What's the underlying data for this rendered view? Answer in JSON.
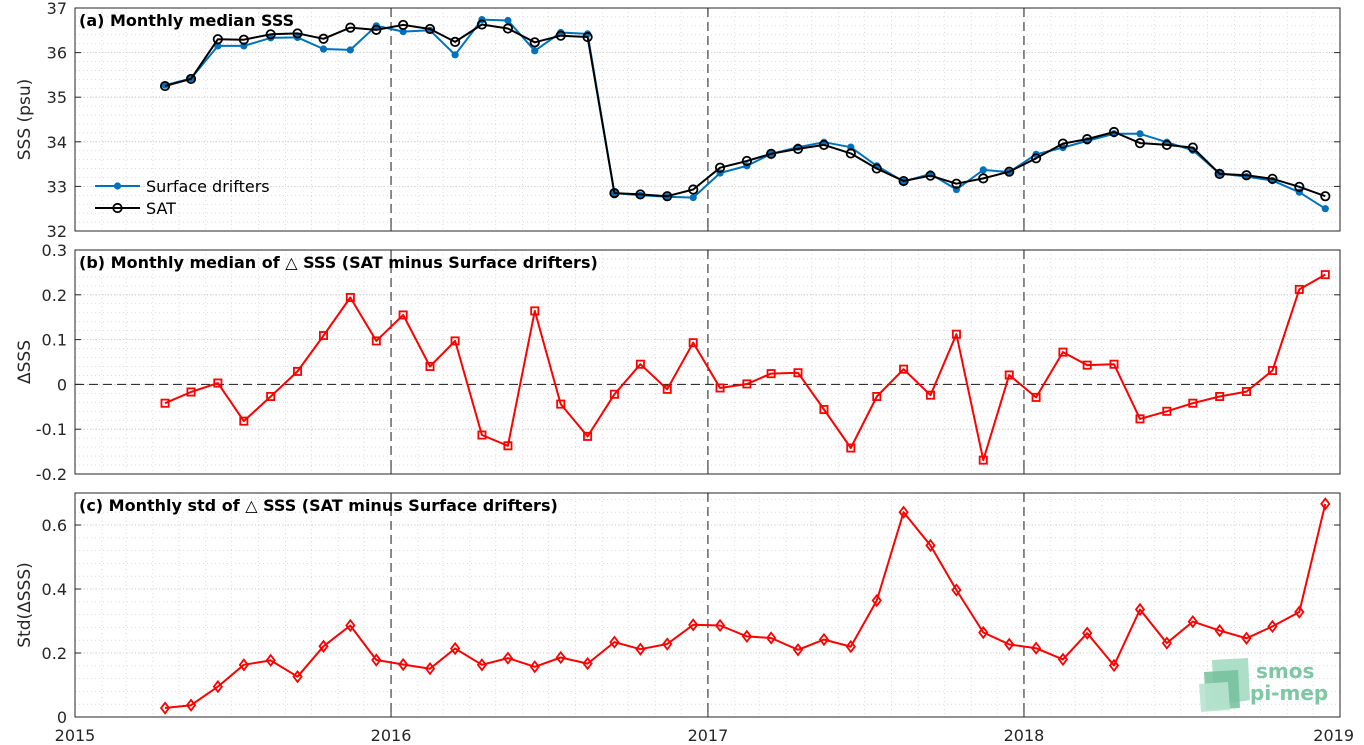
{
  "chart_data": [
    {
      "type": "line",
      "title": "(a) Monthly median SSS",
      "xlabel": "",
      "ylabel": "SSS (psu)",
      "xlim": [
        "2015-01-01",
        "2019-01-01"
      ],
      "ylim": [
        32,
        37
      ],
      "xticks": [
        "2015",
        "2016",
        "2017",
        "2018",
        "2019"
      ],
      "yticks": [
        "32",
        "33",
        "34",
        "35",
        "36",
        "37"
      ],
      "grid": true,
      "legend_location": "bottom-left",
      "x": [
        "2015-04",
        "2015-05",
        "2015-06",
        "2015-07",
        "2015-08",
        "2015-09",
        "2015-10",
        "2015-11",
        "2015-12",
        "2016-01",
        "2016-02",
        "2016-03",
        "2016-04",
        "2016-05",
        "2016-06",
        "2016-07",
        "2016-08",
        "2016-09",
        "2016-10",
        "2016-11",
        "2016-12",
        "2017-01",
        "2017-02",
        "2017-03",
        "2017-04",
        "2017-05",
        "2017-06",
        "2017-07",
        "2017-08",
        "2017-09",
        "2017-10",
        "2017-11",
        "2017-12",
        "2018-01",
        "2018-02",
        "2018-03",
        "2018-04",
        "2018-05",
        "2018-06",
        "2018-07",
        "2018-08",
        "2018-09",
        "2018-10",
        "2018-11",
        "2018-12"
      ],
      "series": [
        {
          "name": "Surface drifters",
          "color": "#0072bd",
          "marker": "dot",
          "values": [
            35.27,
            35.42,
            36.15,
            36.15,
            36.33,
            36.34,
            36.08,
            36.06,
            36.6,
            36.47,
            36.5,
            35.95,
            36.74,
            36.72,
            36.04,
            36.45,
            36.42,
            32.85,
            32.8,
            32.77,
            32.75,
            33.3,
            33.46,
            33.73,
            33.88,
            33.99,
            33.88,
            33.46,
            33.11,
            33.28,
            32.93,
            33.37,
            33.32,
            33.72,
            33.87,
            34.02,
            34.18,
            34.18,
            33.99,
            33.81,
            33.29,
            33.22,
            33.13,
            32.87,
            32.5
          ]
        },
        {
          "name": "SAT",
          "color": "#000000",
          "marker": "circle",
          "values": [
            35.25,
            35.41,
            36.3,
            36.29,
            36.41,
            36.43,
            36.31,
            36.56,
            36.51,
            36.62,
            36.53,
            36.24,
            36.63,
            36.54,
            36.23,
            36.38,
            36.35,
            32.85,
            32.82,
            32.78,
            32.93,
            33.42,
            33.57,
            33.73,
            33.84,
            33.93,
            33.74,
            33.4,
            33.12,
            33.24,
            33.06,
            33.18,
            33.33,
            33.63,
            33.96,
            34.06,
            34.22,
            33.97,
            33.93,
            33.87,
            33.28,
            33.25,
            33.17,
            32.99,
            32.78
          ]
        }
      ]
    },
    {
      "type": "line",
      "title": "(b) Monthly median of △ SSS (SAT minus Surface drifters)",
      "xlabel": "",
      "ylabel": "ΔSSS",
      "xlim": [
        "2015-01-01",
        "2019-01-01"
      ],
      "ylim": [
        -0.2,
        0.3
      ],
      "xticks": [],
      "yticks": [
        "-0.2",
        "-0.1",
        "0",
        "0.1",
        "0.2",
        "0.3"
      ],
      "grid": true,
      "zero_line": true,
      "x": [
        "2015-04",
        "2015-05",
        "2015-06",
        "2015-07",
        "2015-08",
        "2015-09",
        "2015-10",
        "2015-11",
        "2015-12",
        "2016-01",
        "2016-02",
        "2016-03",
        "2016-04",
        "2016-05",
        "2016-06",
        "2016-07",
        "2016-08",
        "2016-09",
        "2016-10",
        "2016-11",
        "2016-12",
        "2017-01",
        "2017-02",
        "2017-03",
        "2017-04",
        "2017-05",
        "2017-06",
        "2017-07",
        "2017-08",
        "2017-09",
        "2017-10",
        "2017-11",
        "2017-12",
        "2018-01",
        "2018-02",
        "2018-03",
        "2018-04",
        "2018-05",
        "2018-06",
        "2018-07",
        "2018-08",
        "2018-09",
        "2018-10",
        "2018-11",
        "2018-12"
      ],
      "series": [
        {
          "color": "#ff0000",
          "marker": "square",
          "values": [
            -0.042,
            -0.017,
            0.003,
            -0.082,
            -0.027,
            0.029,
            0.109,
            0.194,
            0.097,
            0.155,
            0.04,
            0.097,
            -0.113,
            -0.137,
            0.164,
            -0.044,
            -0.116,
            -0.022,
            0.045,
            -0.011,
            0.093,
            -0.008,
            0.001,
            0.024,
            0.026,
            -0.056,
            -0.142,
            -0.027,
            0.034,
            -0.024,
            0.112,
            -0.169,
            0.021,
            -0.029,
            0.072,
            0.043,
            0.045,
            -0.077,
            -0.06,
            -0.042,
            -0.027,
            -0.016,
            0.031,
            0.212,
            0.245
          ]
        }
      ]
    },
    {
      "type": "line",
      "title": "(c) Monthly std of △ SSS (SAT minus Surface drifters)",
      "xlabel": "",
      "ylabel": "Std(ΔSSS)",
      "xlim": [
        "2015-01-01",
        "2019-01-01"
      ],
      "ylim": [
        0,
        0.7
      ],
      "xticks": [
        "2015",
        "2016",
        "2017",
        "2018",
        "2019"
      ],
      "yticks": [
        "0",
        "0.2",
        "0.4",
        "0.6"
      ],
      "grid": true,
      "x": [
        "2015-04",
        "2015-05",
        "2015-06",
        "2015-07",
        "2015-08",
        "2015-09",
        "2015-10",
        "2015-11",
        "2015-12",
        "2016-01",
        "2016-02",
        "2016-03",
        "2016-04",
        "2016-05",
        "2016-06",
        "2016-07",
        "2016-08",
        "2016-09",
        "2016-10",
        "2016-11",
        "2016-12",
        "2017-01",
        "2017-02",
        "2017-03",
        "2017-04",
        "2017-05",
        "2017-06",
        "2017-07",
        "2017-08",
        "2017-09",
        "2017-10",
        "2017-11",
        "2017-12",
        "2018-01",
        "2018-02",
        "2018-03",
        "2018-04",
        "2018-05",
        "2018-06",
        "2018-07",
        "2018-08",
        "2018-09",
        "2018-10",
        "2018-11",
        "2018-12"
      ],
      "series": [
        {
          "color": "#ff0000",
          "marker": "diamond",
          "values": [
            0.028,
            0.037,
            0.095,
            0.163,
            0.177,
            0.126,
            0.221,
            0.286,
            0.178,
            0.164,
            0.151,
            0.214,
            0.163,
            0.184,
            0.157,
            0.186,
            0.167,
            0.234,
            0.212,
            0.228,
            0.288,
            0.286,
            0.252,
            0.247,
            0.21,
            0.242,
            0.22,
            0.364,
            0.64,
            0.536,
            0.397,
            0.264,
            0.227,
            0.215,
            0.18,
            0.262,
            0.161,
            0.336,
            0.231,
            0.298,
            0.27,
            0.246,
            0.283,
            0.328,
            0.666
          ]
        }
      ]
    }
  ],
  "logo": {
    "line1": "smos",
    "line2": "pi-mep"
  }
}
